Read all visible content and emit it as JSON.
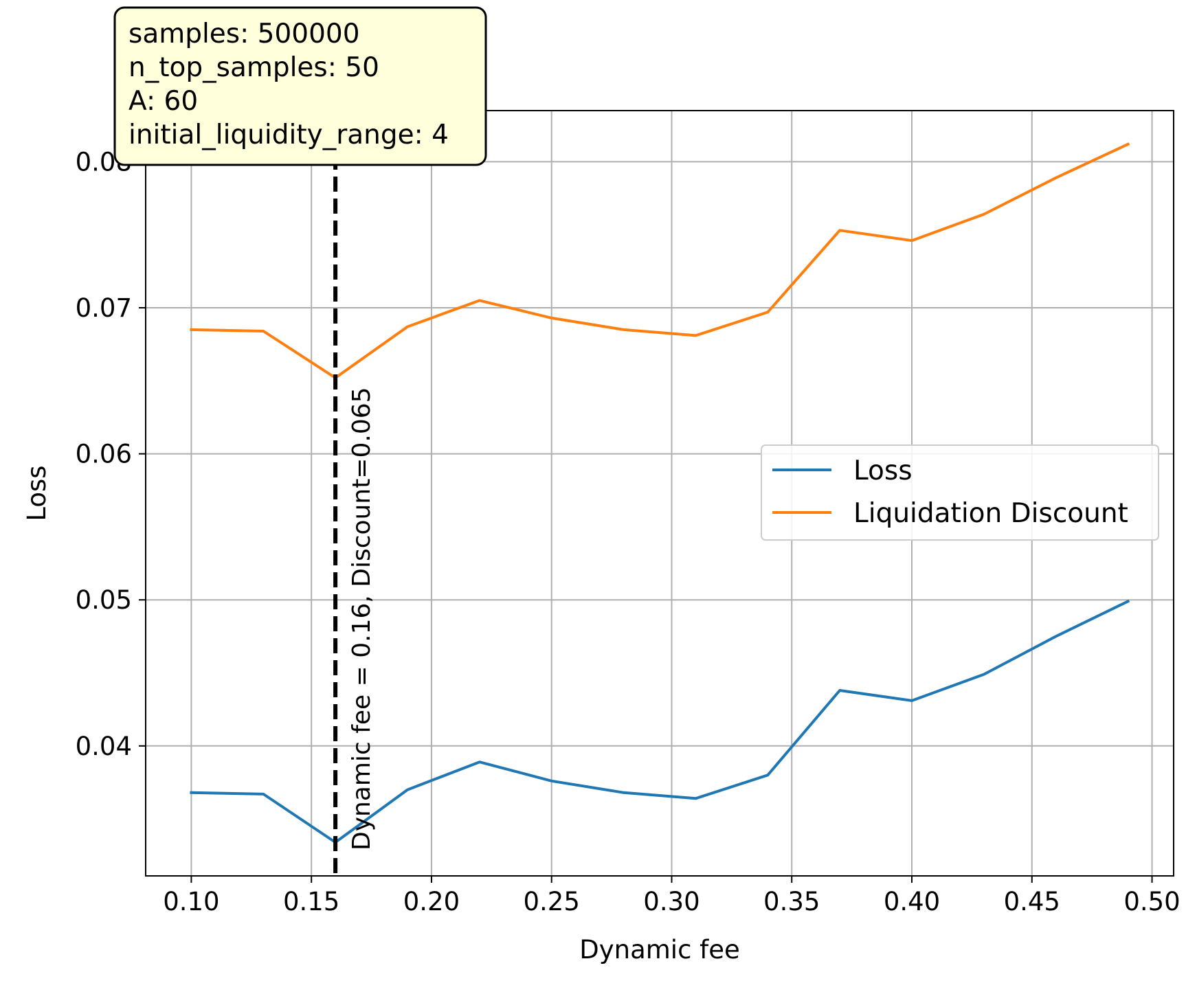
{
  "chart_data": {
    "type": "line",
    "xlabel": "Dynamic fee",
    "ylabel": "Loss",
    "xlim": [
      0.081,
      0.509
    ],
    "ylim": [
      0.0311,
      0.0835
    ],
    "xticks": [
      0.1,
      0.15,
      0.2,
      0.25,
      0.3,
      0.35,
      0.4,
      0.45,
      0.5
    ],
    "xtick_labels": [
      "0.10",
      "0.15",
      "0.20",
      "0.25",
      "0.30",
      "0.35",
      "0.40",
      "0.45",
      "0.50"
    ],
    "yticks": [
      0.04,
      0.05,
      0.06,
      0.07,
      0.08
    ],
    "ytick_labels": [
      "0.04",
      "0.05",
      "0.06",
      "0.07",
      "0.08"
    ],
    "grid": true,
    "legend_position": "center-right",
    "x": [
      0.1,
      0.13,
      0.16,
      0.19,
      0.22,
      0.25,
      0.28,
      0.31,
      0.34,
      0.37,
      0.4,
      0.43,
      0.46,
      0.49
    ],
    "series": [
      {
        "name": "Loss",
        "color": "#1f77b4",
        "values": [
          0.0368,
          0.0367,
          0.0334,
          0.037,
          0.0389,
          0.0376,
          0.0368,
          0.0364,
          0.038,
          0.0438,
          0.0431,
          0.0449,
          0.0475,
          0.0499
        ]
      },
      {
        "name": "Liquidation Discount",
        "color": "#ff7f0e",
        "values": [
          0.0685,
          0.0684,
          0.0652,
          0.0687,
          0.0705,
          0.0693,
          0.0685,
          0.0681,
          0.0697,
          0.0753,
          0.0746,
          0.0764,
          0.0789,
          0.0812
        ]
      }
    ],
    "vline": {
      "x": 0.16,
      "color": "#000000",
      "style": "dashed",
      "label": "Dynamic fee = 0.16, Discount=0.065"
    },
    "info_box": {
      "lines": [
        "samples: 500000",
        "n_top_samples: 50",
        "A: 60",
        "initial_liquidity_range: 4"
      ],
      "background": "#ffffdc"
    }
  }
}
